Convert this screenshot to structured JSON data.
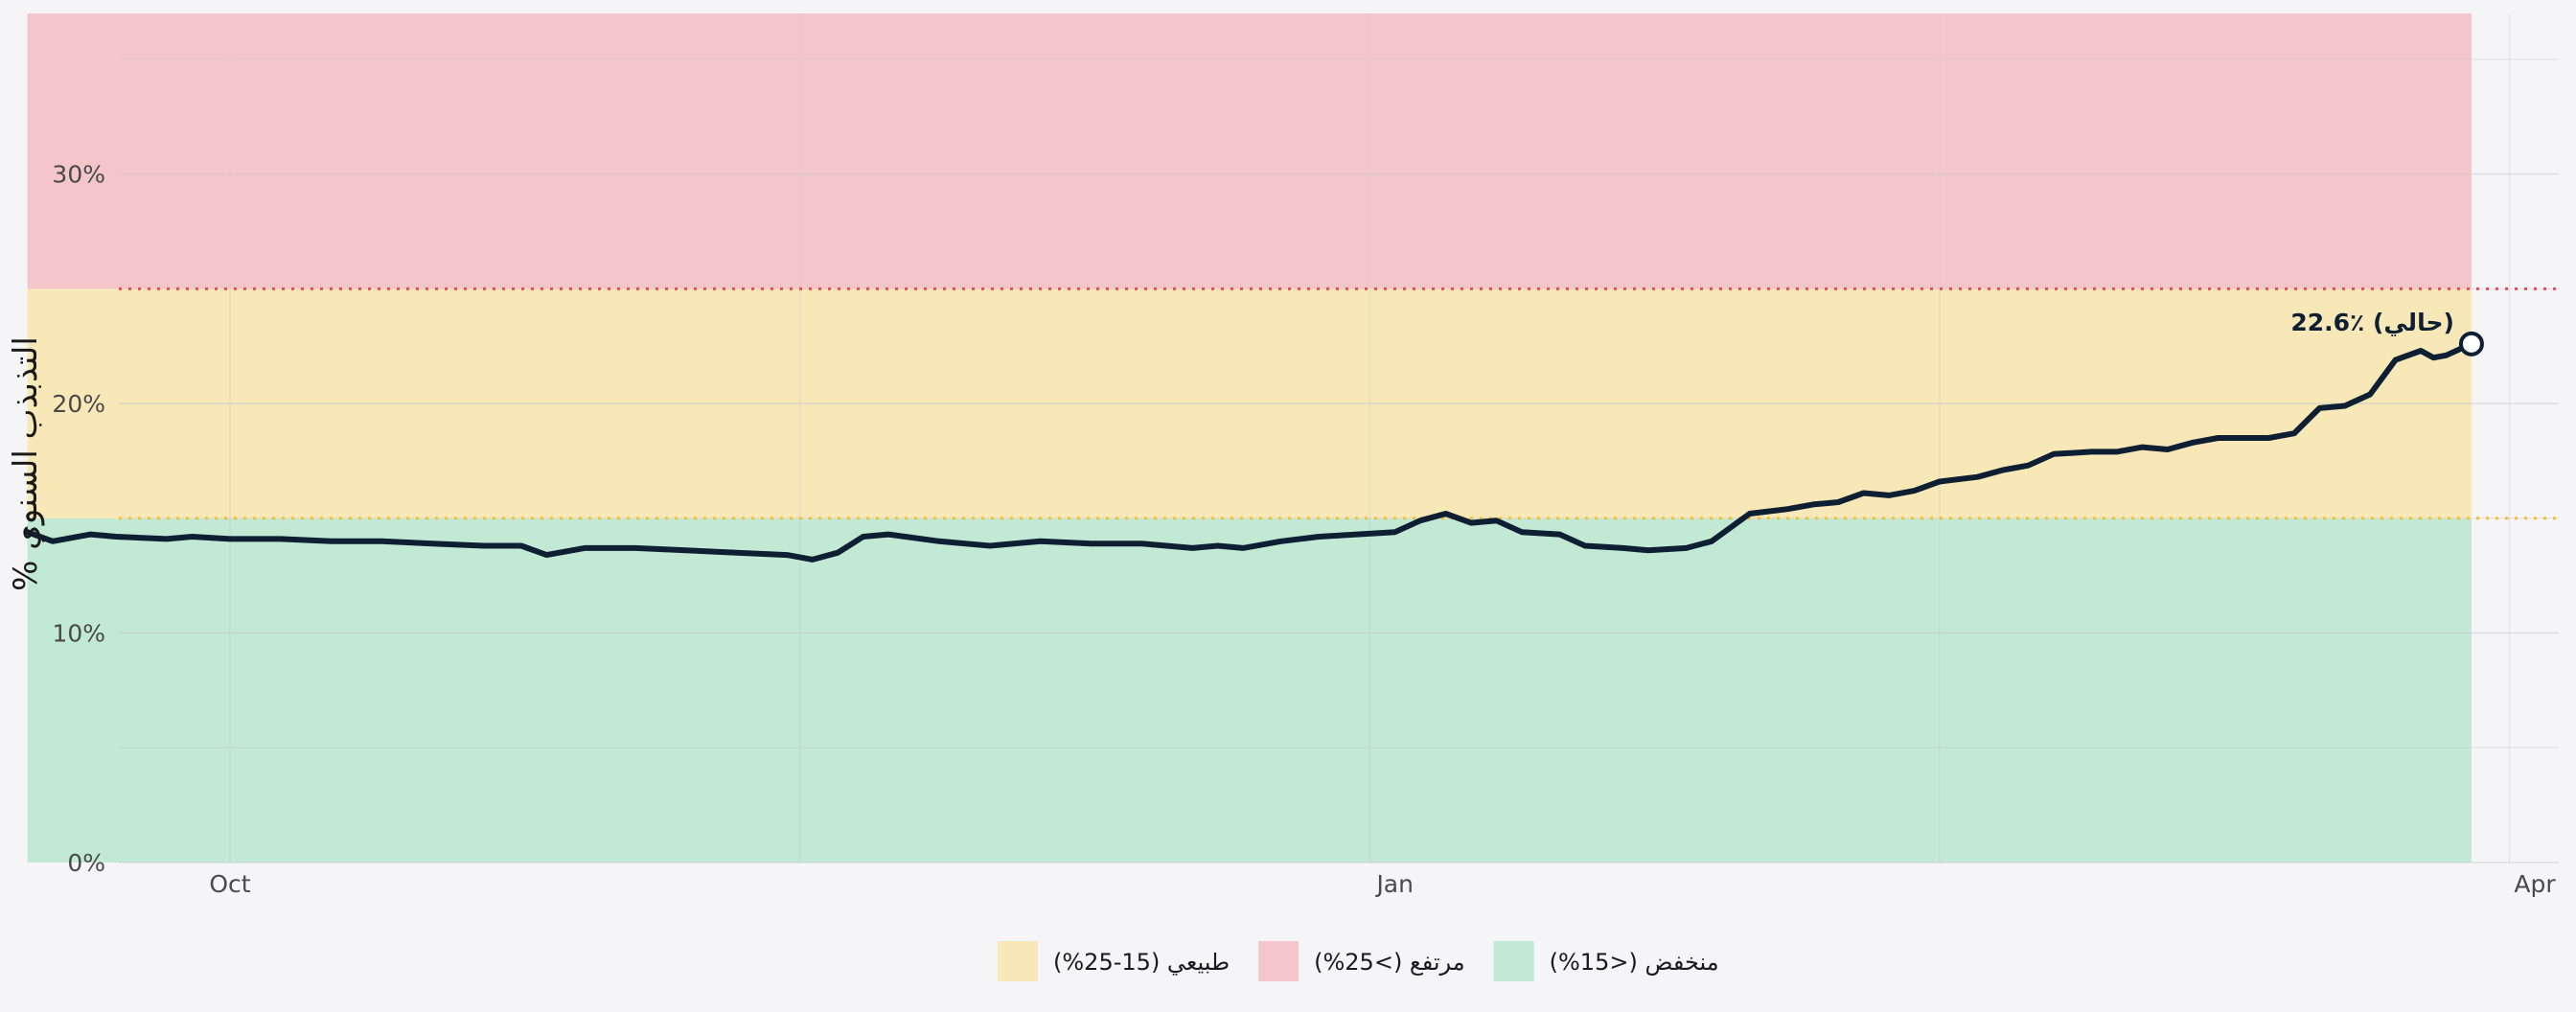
{
  "chart_data": {
    "type": "line",
    "title": "",
    "xlabel": "",
    "ylabel": "التذبذب السنوي %",
    "y_tick_format": "{v}%",
    "ylim": [
      0,
      37
    ],
    "yticks": [
      0,
      10,
      20,
      30
    ],
    "xlim": [
      "2025-09-15",
      "2026-04-01"
    ],
    "xticks": [
      {
        "date": "2025-10-01",
        "label": "Oct"
      },
      {
        "date": "2026-01-01",
        "label": "Jan"
      },
      {
        "date": "2026-04-01",
        "label": "Apr"
      }
    ],
    "grid": true,
    "legend_position": "bottom-center",
    "bands": [
      {
        "name": "منخفض (<15%)",
        "from": 0,
        "to": 15,
        "color": "#c2e9d4"
      },
      {
        "name": "طبيعي (15-25%)",
        "from": 15,
        "to": 25,
        "color": "#f8e8b8"
      },
      {
        "name": "مرتفع (>25%)",
        "from": 25,
        "to": 37,
        "color": "#f4c6c9"
      }
    ],
    "band_range": [
      "2025-09-15",
      "2026-03-27"
    ],
    "thresholds": [
      {
        "value": 15,
        "color": "#f5c02c"
      },
      {
        "value": 25,
        "color": "#e74c5c"
      }
    ],
    "series": [
      {
        "color": "#0f1f33",
        "points": [
          [
            "2025-09-15",
            14.4
          ],
          [
            "2025-09-17",
            14.0
          ],
          [
            "2025-09-20",
            14.3
          ],
          [
            "2025-09-22",
            14.2
          ],
          [
            "2025-09-26",
            14.1
          ],
          [
            "2025-09-28",
            14.2
          ],
          [
            "2025-10-01",
            14.1
          ],
          [
            "2025-10-05",
            14.1
          ],
          [
            "2025-10-09",
            14.0
          ],
          [
            "2025-10-13",
            14.0
          ],
          [
            "2025-10-17",
            13.9
          ],
          [
            "2025-10-21",
            13.8
          ],
          [
            "2025-10-24",
            13.8
          ],
          [
            "2025-10-26",
            13.4
          ],
          [
            "2025-10-29",
            13.7
          ],
          [
            "2025-11-02",
            13.7
          ],
          [
            "2025-11-06",
            13.6
          ],
          [
            "2025-11-10",
            13.5
          ],
          [
            "2025-11-14",
            13.4
          ],
          [
            "2025-11-16",
            13.2
          ],
          [
            "2025-11-18",
            13.5
          ],
          [
            "2025-11-20",
            14.2
          ],
          [
            "2025-11-22",
            14.3
          ],
          [
            "2025-11-26",
            14.0
          ],
          [
            "2025-11-30",
            13.8
          ],
          [
            "2025-12-04",
            14.0
          ],
          [
            "2025-12-08",
            13.9
          ],
          [
            "2025-12-12",
            13.9
          ],
          [
            "2025-12-16",
            13.7
          ],
          [
            "2025-12-18",
            13.8
          ],
          [
            "2025-12-20",
            13.7
          ],
          [
            "2025-12-23",
            14.0
          ],
          [
            "2025-12-26",
            14.2
          ],
          [
            "2025-12-29",
            14.3
          ],
          [
            "2026-01-01",
            14.4
          ],
          [
            "2026-01-03",
            14.9
          ],
          [
            "2026-01-05",
            15.2
          ],
          [
            "2026-01-07",
            14.8
          ],
          [
            "2026-01-09",
            14.9
          ],
          [
            "2026-01-11",
            14.4
          ],
          [
            "2026-01-14",
            14.3
          ],
          [
            "2026-01-16",
            13.8
          ],
          [
            "2026-01-19",
            13.7
          ],
          [
            "2026-01-21",
            13.6
          ],
          [
            "2026-01-24",
            13.7
          ],
          [
            "2026-01-26",
            14.0
          ],
          [
            "2026-01-29",
            15.2
          ],
          [
            "2026-02-01",
            15.4
          ],
          [
            "2026-02-03",
            15.6
          ],
          [
            "2026-02-05",
            15.7
          ],
          [
            "2026-02-07",
            16.1
          ],
          [
            "2026-02-09",
            16.0
          ],
          [
            "2026-02-11",
            16.2
          ],
          [
            "2026-02-13",
            16.6
          ],
          [
            "2026-02-16",
            16.8
          ],
          [
            "2026-02-18",
            17.1
          ],
          [
            "2026-02-20",
            17.3
          ],
          [
            "2026-02-22",
            17.8
          ],
          [
            "2026-02-25",
            17.9
          ],
          [
            "2026-02-27",
            17.9
          ],
          [
            "2026-03-01",
            18.1
          ],
          [
            "2026-03-03",
            18.0
          ],
          [
            "2026-03-05",
            18.3
          ],
          [
            "2026-03-07",
            18.5
          ],
          [
            "2026-03-09",
            18.5
          ],
          [
            "2026-03-11",
            18.5
          ],
          [
            "2026-03-13",
            18.7
          ],
          [
            "2026-03-15",
            19.8
          ],
          [
            "2026-03-17",
            19.9
          ],
          [
            "2026-03-19",
            20.4
          ],
          [
            "2026-03-21",
            21.9
          ],
          [
            "2026-03-23",
            22.3
          ],
          [
            "2026-03-24",
            22.0
          ],
          [
            "2026-03-25",
            22.1
          ],
          [
            "2026-03-27",
            22.6
          ]
        ]
      }
    ],
    "annotations": [
      {
        "date": "2026-03-27",
        "value": 22.6,
        "text": "22.6٪ (حالي)",
        "marker": "open-circle"
      }
    ]
  }
}
